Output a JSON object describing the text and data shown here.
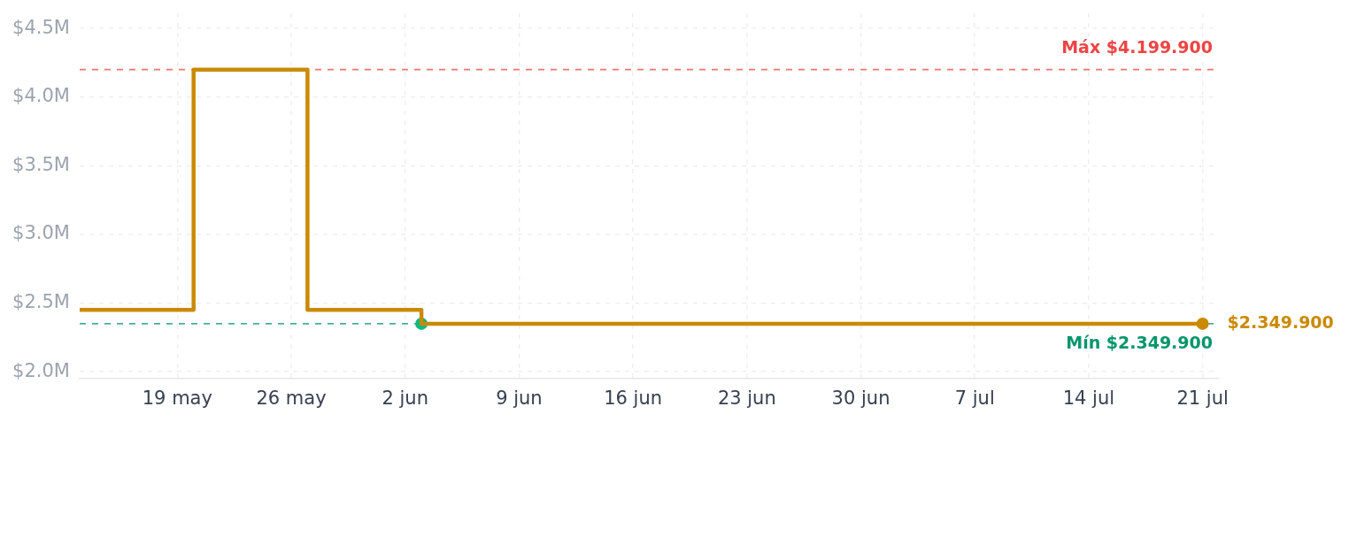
{
  "chart_data": {
    "type": "step",
    "series": [
      {
        "color": "#ca8a04",
        "x": [
          "--05-13",
          "--05-20",
          "--05-27",
          "--06-03",
          "--07-21"
        ],
        "values": [
          2450000,
          4199900,
          2450000,
          2349900,
          2349900
        ]
      },
      {
        "type": "scatter",
        "color": "#10b981",
        "marker": "circle",
        "x": [
          "--06-03"
        ],
        "values": [
          2349900
        ]
      },
      {
        "type": "scatter",
        "color": "#ca8a04",
        "marker": "circle",
        "x": [
          "--07-21"
        ],
        "values": [
          2349900
        ],
        "value_labels": [
          "$2.349.900"
        ]
      }
    ],
    "xlim": [
      "--05-13",
      "--07-22"
    ],
    "xticks": [
      {
        "value": "--05-19",
        "label": "19 may"
      },
      {
        "value": "--05-26",
        "label": "26 may"
      },
      {
        "value": "--06-02",
        "label": "2 jun"
      },
      {
        "value": "--06-09",
        "label": "9 jun"
      },
      {
        "value": "--06-16",
        "label": "16 jun"
      },
      {
        "value": "--06-23",
        "label": "23 jun"
      },
      {
        "value": "--06-30",
        "label": "30 jun"
      },
      {
        "value": "--07-07",
        "label": "7 jul"
      },
      {
        "value": "--07-14",
        "label": "14 jul"
      },
      {
        "value": "--07-21",
        "label": "21 jul"
      }
    ],
    "ylim": [
      1950000,
      4610000
    ],
    "yticks": [
      {
        "value": 2000000,
        "label": "$2.0M"
      },
      {
        "value": 2500000,
        "label": "$2.5M"
      },
      {
        "value": 3000000,
        "label": "$3.0M"
      },
      {
        "value": 3500000,
        "label": "$3.5M"
      },
      {
        "value": 4000000,
        "label": "$4.0M"
      },
      {
        "value": 4500000,
        "label": "$4.5M"
      }
    ],
    "ref_lines": [
      {
        "axis": "y",
        "value": 4199900,
        "label": "Máx $4.199.900",
        "color": "#ef4444",
        "line_style": "dashed"
      },
      {
        "axis": "y",
        "value": 2349900,
        "label": "Mín $2.349.900",
        "color": "#059669",
        "line_style": "dashed"
      }
    ],
    "grid": true
  }
}
